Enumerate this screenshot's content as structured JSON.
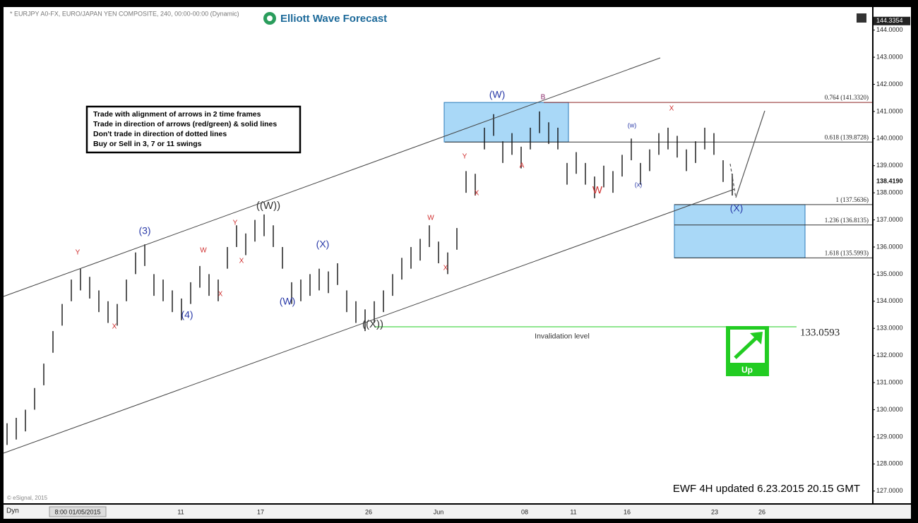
{
  "chart_data": {
    "type": "ohlc",
    "title": "* EURJPY A0-FX, EURO/JAPAN YEN COMPOSITE, 240, 00:00-00:00 (Dynamic)",
    "brand": "Elliott Wave Forecast",
    "footer": "EWF 4H updated 6.23.2015 20.15 GMT",
    "copyright": "© eSignal, 2015",
    "mode": "Dyn",
    "signal": "Up",
    "notes": [
      "Trade with alignment of arrows in 2 time frames",
      "Trade in direction of arrows (red/green) & solid lines",
      "Don't trade in direction of dotted lines",
      "Buy or Sell in 3, 7 or 11 swings"
    ],
    "color": "#111111",
    "high": [
      129.5,
      129.7,
      130.0,
      130.8,
      131.7,
      132.9,
      133.9,
      134.8,
      135.2,
      134.9,
      134.4,
      134.0,
      133.9,
      134.8,
      135.8,
      136.1,
      135.0,
      134.8,
      134.4,
      134.1,
      134.7,
      135.3,
      135.0,
      134.8,
      136.0,
      136.8,
      136.5,
      137.0,
      137.2,
      136.8,
      136.0,
      134.7,
      134.8,
      135.0,
      135.2,
      135.1,
      135.4,
      134.4,
      134.0,
      133.7,
      134.0,
      134.4,
      135.0,
      135.6,
      136.0,
      136.3,
      136.8,
      136.2,
      135.8,
      136.7,
      138.8,
      138.7,
      140.4,
      140.9,
      139.9,
      140.2,
      139.7,
      140.4,
      141.0,
      140.6,
      140.4,
      139.1,
      139.5,
      139.1,
      138.6,
      139.0,
      138.8,
      139.4,
      140.0,
      139.1,
      139.6,
      140.2,
      140.4,
      140.1,
      139.6,
      139.9,
      140.4,
      140.2,
      139.2,
      138.7
    ],
    "low": [
      128.7,
      128.9,
      129.2,
      130.0,
      130.9,
      132.1,
      133.1,
      134.0,
      134.4,
      134.1,
      133.6,
      133.2,
      133.1,
      134.0,
      135.0,
      135.3,
      134.2,
      134.0,
      133.6,
      133.3,
      133.9,
      134.5,
      134.2,
      134.0,
      135.2,
      136.0,
      135.7,
      136.2,
      136.4,
      136.0,
      135.2,
      133.9,
      134.0,
      134.2,
      134.4,
      134.3,
      134.6,
      133.6,
      133.2,
      132.9,
      133.2,
      133.6,
      134.2,
      134.8,
      135.2,
      135.5,
      136.0,
      135.4,
      135.0,
      135.9,
      138.0,
      137.9,
      139.6,
      140.1,
      139.1,
      139.4,
      138.9,
      139.6,
      140.2,
      139.8,
      139.6,
      138.3,
      138.7,
      138.3,
      137.8,
      138.2,
      138.0,
      138.6,
      139.2,
      138.3,
      138.8,
      139.4,
      139.6,
      139.3,
      138.8,
      139.1,
      139.6,
      139.4,
      138.4,
      137.9
    ],
    "ylim": [
      126.55,
      144.85
    ],
    "yticks": [
      {
        "value": 127,
        "label": "127.0000"
      },
      {
        "value": 128,
        "label": "128.0000"
      },
      {
        "value": 129,
        "label": "129.0000"
      },
      {
        "value": 130,
        "label": "130.0000"
      },
      {
        "value": 131,
        "label": "131.0000"
      },
      {
        "value": 132,
        "label": "132.0000"
      },
      {
        "value": 133,
        "label": "133.0000"
      },
      {
        "value": 134,
        "label": "134.0000"
      },
      {
        "value": 135,
        "label": "135.0000"
      },
      {
        "value": 136,
        "label": "136.0000"
      },
      {
        "value": 137,
        "label": "137.0000"
      },
      {
        "value": 138,
        "label": "138.0000"
      },
      {
        "value": 139,
        "label": "139.0000"
      },
      {
        "value": 140,
        "label": "140.0000"
      },
      {
        "value": 141,
        "label": "141.0000"
      },
      {
        "value": 142,
        "label": "142.0000"
      },
      {
        "value": 143,
        "label": "143.0000"
      },
      {
        "value": 144,
        "label": "144.0000"
      }
    ],
    "price_tags": [
      {
        "value": 144.3354,
        "label": "144.3354"
      },
      {
        "value": 138.419,
        "label": "138.4190"
      }
    ],
    "xlabels": [
      "8:00 01/05/2015",
      "11",
      "17",
      "26",
      "Jun",
      "08",
      "11",
      "16",
      "23",
      "26"
    ],
    "levels": [
      {
        "value": 141.332,
        "label": "0.764 (141.3320)",
        "color": "#8b2020"
      },
      {
        "value": 139.8728,
        "label": "0.618 (139.8728)",
        "color": "#333333"
      },
      {
        "value": 137.5636,
        "label": "1 (137.5636)",
        "color": "#333333"
      },
      {
        "value": 136.8135,
        "label": "1.236 (136.8135)",
        "color": "#333333"
      },
      {
        "value": 135.5993,
        "label": "1.618 (135.5993)",
        "color": "#333333"
      }
    ],
    "invalidation": {
      "value": 133.0593,
      "label": "133.0593",
      "text": "Invalidation level",
      "color": "#22cc22"
    },
    "box_color": "#a9d8f7",
    "waves": [
      {
        "text": "Y",
        "color": "#d03030"
      },
      {
        "text": "X",
        "color": "#d03030"
      },
      {
        "text": "(3)",
        "color": "#2a3aa8"
      },
      {
        "text": "(4)",
        "color": "#2a3aa8"
      },
      {
        "text": "W",
        "color": "#d03030"
      },
      {
        "text": "X",
        "color": "#d03030"
      },
      {
        "text": "Y",
        "color": "#d03030"
      },
      {
        "text": "X",
        "color": "#d03030"
      },
      {
        "text": "((W))",
        "color": "#333333"
      },
      {
        "text": "(W)",
        "color": "#2a3aa8"
      },
      {
        "text": "(X)",
        "color": "#2a3aa8"
      },
      {
        "text": "((X))",
        "color": "#333333"
      },
      {
        "text": "W",
        "color": "#d03030"
      },
      {
        "text": "X",
        "color": "#d03030"
      },
      {
        "text": "Y",
        "color": "#d03030"
      },
      {
        "text": "X",
        "color": "#d03030"
      },
      {
        "text": "(W)",
        "color": "#2a3aa8"
      },
      {
        "text": "A",
        "color": "#d03030"
      },
      {
        "text": "B",
        "color": "#8a2a6a"
      },
      {
        "text": "W",
        "color": "#d03030"
      },
      {
        "text": "(w)",
        "color": "#2a3aa8"
      },
      {
        "text": "(x)",
        "color": "#2a3aa8"
      },
      {
        "text": "X",
        "color": "#d03030"
      },
      {
        "text": "(X)",
        "color": "#2a3aa8"
      }
    ]
  }
}
